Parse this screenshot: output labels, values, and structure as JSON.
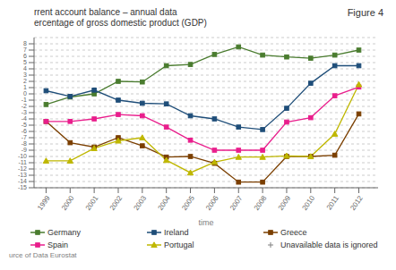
{
  "chart_data": {
    "type": "line",
    "title": "rrent account balance – annual data",
    "subtitle": "ercentage of gross domestic product (GDP)",
    "xlabel": "time",
    "x": [
      1999,
      2000,
      2001,
      2002,
      2003,
      2004,
      2005,
      2006,
      2007,
      2008,
      2009,
      2010,
      2011,
      2012
    ],
    "series": [
      {
        "name": "Germany",
        "color": "#4a7c2f",
        "marker": "square",
        "values": [
          -1.7,
          -0.5,
          0.0,
          2.0,
          1.9,
          4.5,
          4.7,
          6.3,
          7.5,
          6.2,
          5.9,
          5.7,
          6.2,
          7.0
        ]
      },
      {
        "name": "Ireland",
        "color": "#1f4e79",
        "marker": "square",
        "values": [
          0.5,
          -0.4,
          0.6,
          -1.0,
          -1.5,
          -1.6,
          -3.5,
          -4.0,
          -5.3,
          -5.7,
          -2.3,
          1.7,
          4.5,
          4.5
        ]
      },
      {
        "name": "Greece",
        "color": "#7b3f00",
        "marker": "square",
        "values": [
          -4.4,
          -7.8,
          -8.5,
          -7.0,
          -8.3,
          -10.1,
          -10.0,
          -11.1,
          -14.1,
          -14.1,
          -10.0,
          -10.0,
          -9.8,
          -3.2
        ]
      },
      {
        "name": "Spain",
        "color": "#e91e8c",
        "marker": "square",
        "values": [
          -4.4,
          -4.4,
          -4.0,
          -3.3,
          -3.5,
          -5.3,
          -7.4,
          -9.0,
          -9.0,
          -9.0,
          -4.5,
          -3.8,
          -0.3,
          1.1
        ]
      },
      {
        "name": "Portugal",
        "color": "#bfb700",
        "marker": "triangle",
        "values": [
          -10.7,
          -10.7,
          -8.7,
          -7.5,
          -7.0,
          -10.6,
          -12.6,
          -10.9,
          -10.1,
          -10.1,
          -9.9,
          -10.0,
          -6.4,
          1.5
        ]
      }
    ],
    "xlim": [
      1998.5,
      2012.8
    ],
    "xticks": [
      1999,
      2000,
      2001,
      2002,
      2003,
      2004,
      2005,
      2006,
      2007,
      2008,
      2009,
      2010,
      2011,
      2012
    ],
    "ylim": [
      -15,
      9
    ],
    "yticks": [
      -15,
      -14,
      -13,
      -12,
      -11,
      -10,
      -9,
      -8,
      -7,
      -6,
      -5,
      -4,
      -3,
      -2,
      -1,
      0,
      1,
      2,
      3,
      4,
      5,
      6,
      7,
      8
    ],
    "grid": true,
    "legend": "bottom",
    "annotations": [
      "Figure 4",
      "Unavailable data is ignored",
      "urce of Data Eurostat"
    ]
  }
}
